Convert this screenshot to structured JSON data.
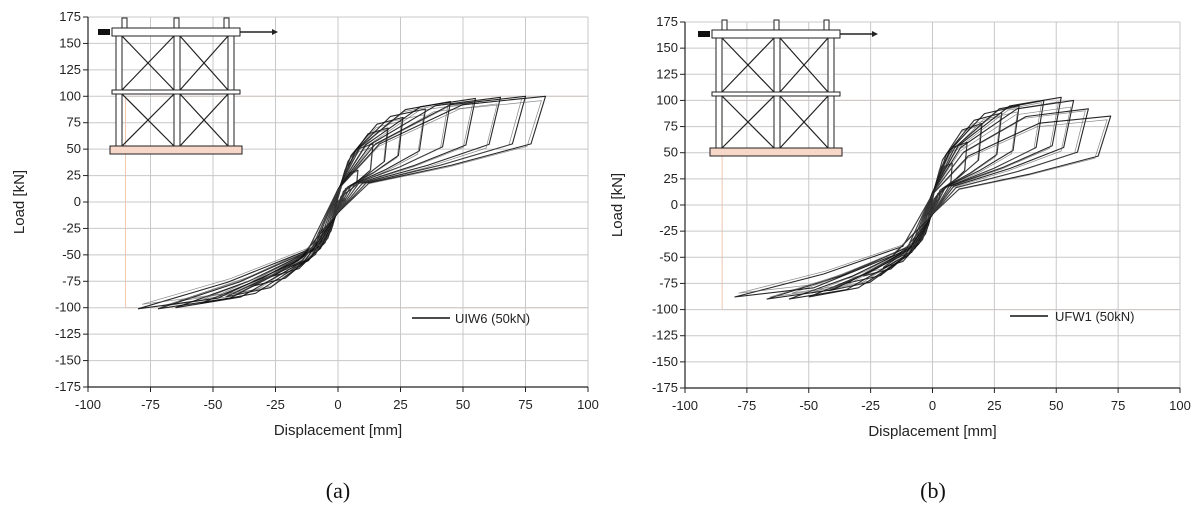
{
  "chart_data": [
    {
      "type": "line",
      "panel_label": "(a)",
      "xlabel": "Displacement [mm]",
      "ylabel": "Load [kN]",
      "xlim": [
        -100,
        100
      ],
      "ylim": [
        -175,
        175
      ],
      "xticks": [
        -100,
        -75,
        -50,
        -25,
        0,
        25,
        50,
        75,
        100
      ],
      "yticks": [
        175,
        150,
        125,
        100,
        75,
        50,
        25,
        0,
        -25,
        -50,
        -75,
        -100,
        -125,
        -150,
        -175
      ],
      "grid": true,
      "legend": {
        "position": "bottom-right",
        "entries": [
          "UIW6 (50kN)"
        ]
      },
      "series": [
        {
          "name": "UIW6 (50kN)",
          "color": "#111111",
          "loops": [
            {
              "pos": [
                3,
                3
              ],
              "neg": [
                -3,
                -3
              ]
            },
            {
              "pos": [
                8,
                30
              ],
              "neg": [
                -8,
                -30
              ]
            },
            {
              "pos": [
                14,
                55
              ],
              "neg": [
                -14,
                -50
              ]
            },
            {
              "pos": [
                20,
                70
              ],
              "neg": [
                -20,
                -62
              ]
            },
            {
              "pos": [
                26,
                80
              ],
              "neg": [
                -26,
                -70
              ]
            },
            {
              "pos": [
                35,
                88
              ],
              "neg": [
                -35,
                -80
              ]
            },
            {
              "pos": [
                45,
                95
              ],
              "neg": [
                -45,
                -90
              ]
            },
            {
              "pos": [
                55,
                98
              ],
              "neg": [
                -55,
                -96
              ]
            },
            {
              "pos": [
                65,
                99
              ],
              "neg": [
                -65,
                -100
              ]
            },
            {
              "pos": [
                75,
                100
              ],
              "neg": [
                -72,
                -101
              ]
            },
            {
              "pos": [
                83,
                100
              ],
              "neg": [
                -80,
                -101
              ]
            }
          ]
        }
      ]
    },
    {
      "type": "line",
      "panel_label": "(b)",
      "xlabel": "Displacement [mm]",
      "ylabel": "Load [kN]",
      "xlim": [
        -100,
        100
      ],
      "ylim": [
        -175,
        175
      ],
      "xticks": [
        -100,
        -75,
        -50,
        -25,
        0,
        25,
        50,
        75,
        100
      ],
      "yticks": [
        175,
        150,
        125,
        100,
        75,
        50,
        25,
        0,
        -25,
        -50,
        -75,
        -100,
        -125,
        -150,
        -175
      ],
      "grid": true,
      "legend": {
        "position": "bottom-right",
        "entries": [
          "UFW1 (50kN)"
        ]
      },
      "series": [
        {
          "name": "UFW1 (50kN)",
          "color": "#111111",
          "loops": [
            {
              "pos": [
                3,
                10
              ],
              "neg": [
                -3,
                -10
              ]
            },
            {
              "pos": [
                8,
                40
              ],
              "neg": [
                -8,
                -35
              ]
            },
            {
              "pos": [
                14,
                60
              ],
              "neg": [
                -14,
                -50
              ]
            },
            {
              "pos": [
                20,
                78
              ],
              "neg": [
                -20,
                -60
              ]
            },
            {
              "pos": [
                28,
                88
              ],
              "neg": [
                -28,
                -68
              ]
            },
            {
              "pos": [
                35,
                95
              ],
              "neg": [
                -35,
                -75
              ]
            },
            {
              "pos": [
                45,
                100
              ],
              "neg": [
                -42,
                -82
              ]
            },
            {
              "pos": [
                52,
                103
              ],
              "neg": [
                -50,
                -88
              ]
            },
            {
              "pos": [
                57,
                100
              ],
              "neg": [
                -58,
                -90
              ]
            },
            {
              "pos": [
                63,
                92
              ],
              "neg": [
                -67,
                -90
              ]
            },
            {
              "pos": [
                72,
                85
              ],
              "neg": [
                -80,
                -88
              ]
            }
          ]
        }
      ]
    }
  ]
}
